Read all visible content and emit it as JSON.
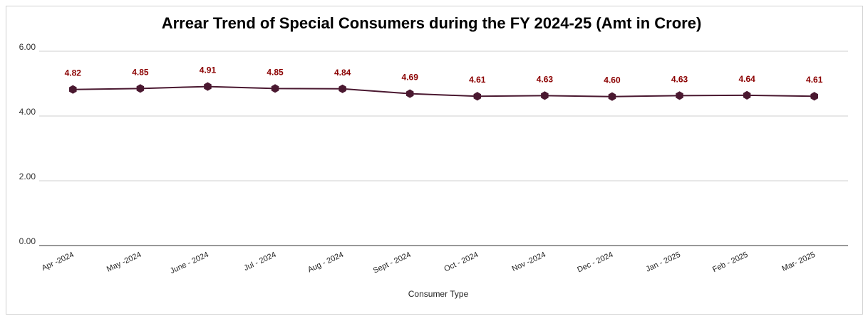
{
  "chart_data": {
    "type": "line",
    "title": "Arrear Trend of Special Consumers  during the FY 2024-25 (Amt in Crore)",
    "xlabel": "Consumer Type",
    "ylabel": "",
    "categories": [
      "Apr -2024",
      "May -2024",
      "June - 2024",
      "Jul - 2024",
      "Aug - 2024",
      "Sept - 2024",
      "Oct - 2024",
      "Nov -2024",
      "Dec - 2024",
      "Jan - 2025",
      "Feb - 2025",
      "Mar- 2025"
    ],
    "series": [
      {
        "values": [
          4.82,
          4.85,
          4.91,
          4.85,
          4.84,
          4.69,
          4.61,
          4.63,
          4.6,
          4.63,
          4.64,
          4.61
        ],
        "color": "#4a1830"
      }
    ],
    "data_labels": [
      "4.82",
      "4.85",
      "4.91",
      "4.85",
      "4.84",
      "4.69",
      "4.61",
      "4.63",
      "4.60",
      "4.63",
      "4.64",
      "4.61"
    ],
    "data_label_color": "#8b0000",
    "ylim": [
      0,
      6
    ],
    "yticks": [
      "0.00",
      "2.00",
      "4.00",
      "6.00"
    ],
    "grid": true,
    "legend": "none"
  }
}
